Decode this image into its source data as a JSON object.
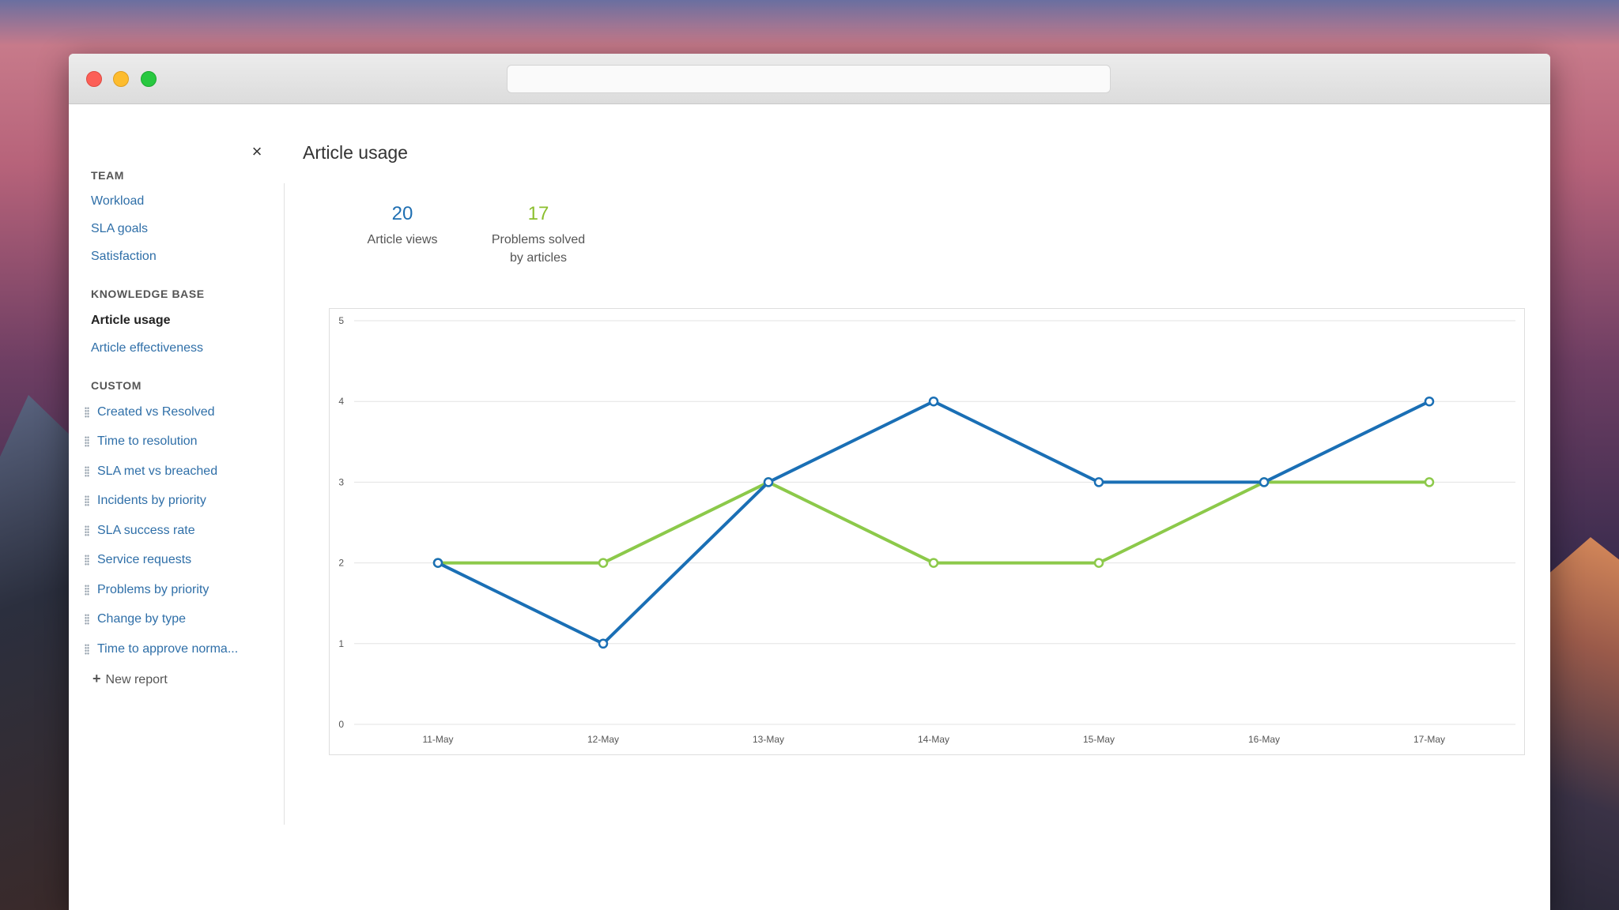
{
  "window": {
    "address": ""
  },
  "sidebar": {
    "sections": [
      {
        "heading": "TEAM",
        "items": [
          {
            "label": "Workload",
            "active": false
          },
          {
            "label": "SLA goals",
            "active": false
          },
          {
            "label": "Satisfaction",
            "active": false
          }
        ]
      },
      {
        "heading": "KNOWLEDGE BASE",
        "items": [
          {
            "label": "Article usage",
            "active": true
          },
          {
            "label": "Article effectiveness",
            "active": false
          }
        ]
      },
      {
        "heading": "CUSTOM",
        "items": [
          {
            "label": "Created vs Resolved"
          },
          {
            "label": "Time to resolution"
          },
          {
            "label": "SLA met vs breached"
          },
          {
            "label": "Incidents by priority"
          },
          {
            "label": "SLA success rate"
          },
          {
            "label": "Service requests"
          },
          {
            "label": "Problems by priority"
          },
          {
            "label": "Change by type"
          },
          {
            "label": "Time to approve norma..."
          }
        ]
      }
    ],
    "new_report_label": "New report",
    "close_icon": "close-icon"
  },
  "main": {
    "title": "Article usage",
    "metrics": [
      {
        "value": "20",
        "label": "Article views",
        "color": "#1f6fb2"
      },
      {
        "value": "17",
        "label_line1": "Problems solved",
        "label_line2": "by articles",
        "color": "#8cbf2e"
      }
    ]
  },
  "colors": {
    "series_blue": "#1a6fb5",
    "series_green": "#8cc94a",
    "link": "#2f6fa8"
  },
  "chart_data": {
    "type": "line",
    "categories": [
      "11-May",
      "12-May",
      "13-May",
      "14-May",
      "15-May",
      "16-May",
      "17-May"
    ],
    "series": [
      {
        "values": [
          2,
          1,
          3,
          4,
          3,
          3,
          4
        ],
        "color": "#1a6fb5"
      },
      {
        "values": [
          2,
          2,
          3,
          2,
          2,
          3,
          3
        ],
        "color": "#8cc94a"
      }
    ],
    "ylim": [
      0,
      5
    ],
    "yticks": [
      0,
      1,
      2,
      3,
      4,
      5
    ],
    "grid": true
  }
}
